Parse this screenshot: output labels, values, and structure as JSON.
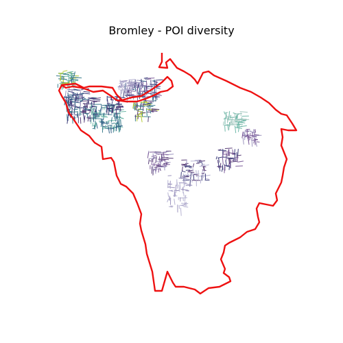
{
  "map": {
    "title": "Bromley - POI diversity",
    "boundary_color": "#ee1111",
    "street_palette": [
      "#b5c935",
      "#6fb8a8",
      "#3b7d8c",
      "#2f5f85",
      "#3c3c7a",
      "#5a3e78",
      "#7a5a98",
      "#9c94be",
      "#b6b3d2",
      "#a4c8c0"
    ]
  }
}
